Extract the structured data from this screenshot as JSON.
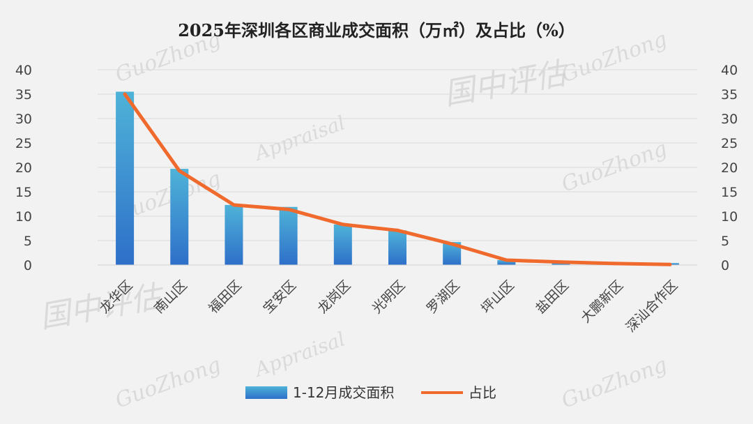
{
  "chart_data": {
    "type": "bar",
    "title": "2025年深圳各区商业成交面积（万㎡）及占比（%）",
    "categories": [
      "龙华区",
      "南山区",
      "福田区",
      "宝安区",
      "龙岗区",
      "光明区",
      "罗湖区",
      "坪山区",
      "盐田区",
      "大鹏新区",
      "深汕合作区"
    ],
    "series": [
      {
        "name": "1-12月成交面积",
        "type": "bar",
        "axis": "left",
        "values": [
          35.5,
          19.7,
          12.3,
          11.9,
          8.3,
          7.1,
          4.7,
          1.0,
          0.4,
          0.2,
          0.4
        ]
      },
      {
        "name": "占比",
        "type": "line",
        "axis": "right",
        "values": [
          35.0,
          19.3,
          12.3,
          11.4,
          8.3,
          7.1,
          4.3,
          1.0,
          0.6,
          0.3,
          0.1
        ]
      }
    ],
    "y_left": {
      "min": 0,
      "max": 40,
      "ticks": [
        0,
        5,
        10,
        15,
        20,
        25,
        30,
        35,
        40
      ]
    },
    "y_right": {
      "min": 0,
      "max": 40,
      "ticks": [
        0,
        5,
        10,
        15,
        20,
        25,
        30,
        35,
        40
      ]
    },
    "grid": true,
    "legend": "bottom",
    "colors": {
      "bar_top": "#4fb3d8",
      "bar_bottom": "#2e6fc9",
      "line": "#ef6a2c",
      "grid": "#d9d9d9"
    },
    "watermark": [
      "国中评估",
      "GuoZhong",
      "Appraisal"
    ]
  }
}
